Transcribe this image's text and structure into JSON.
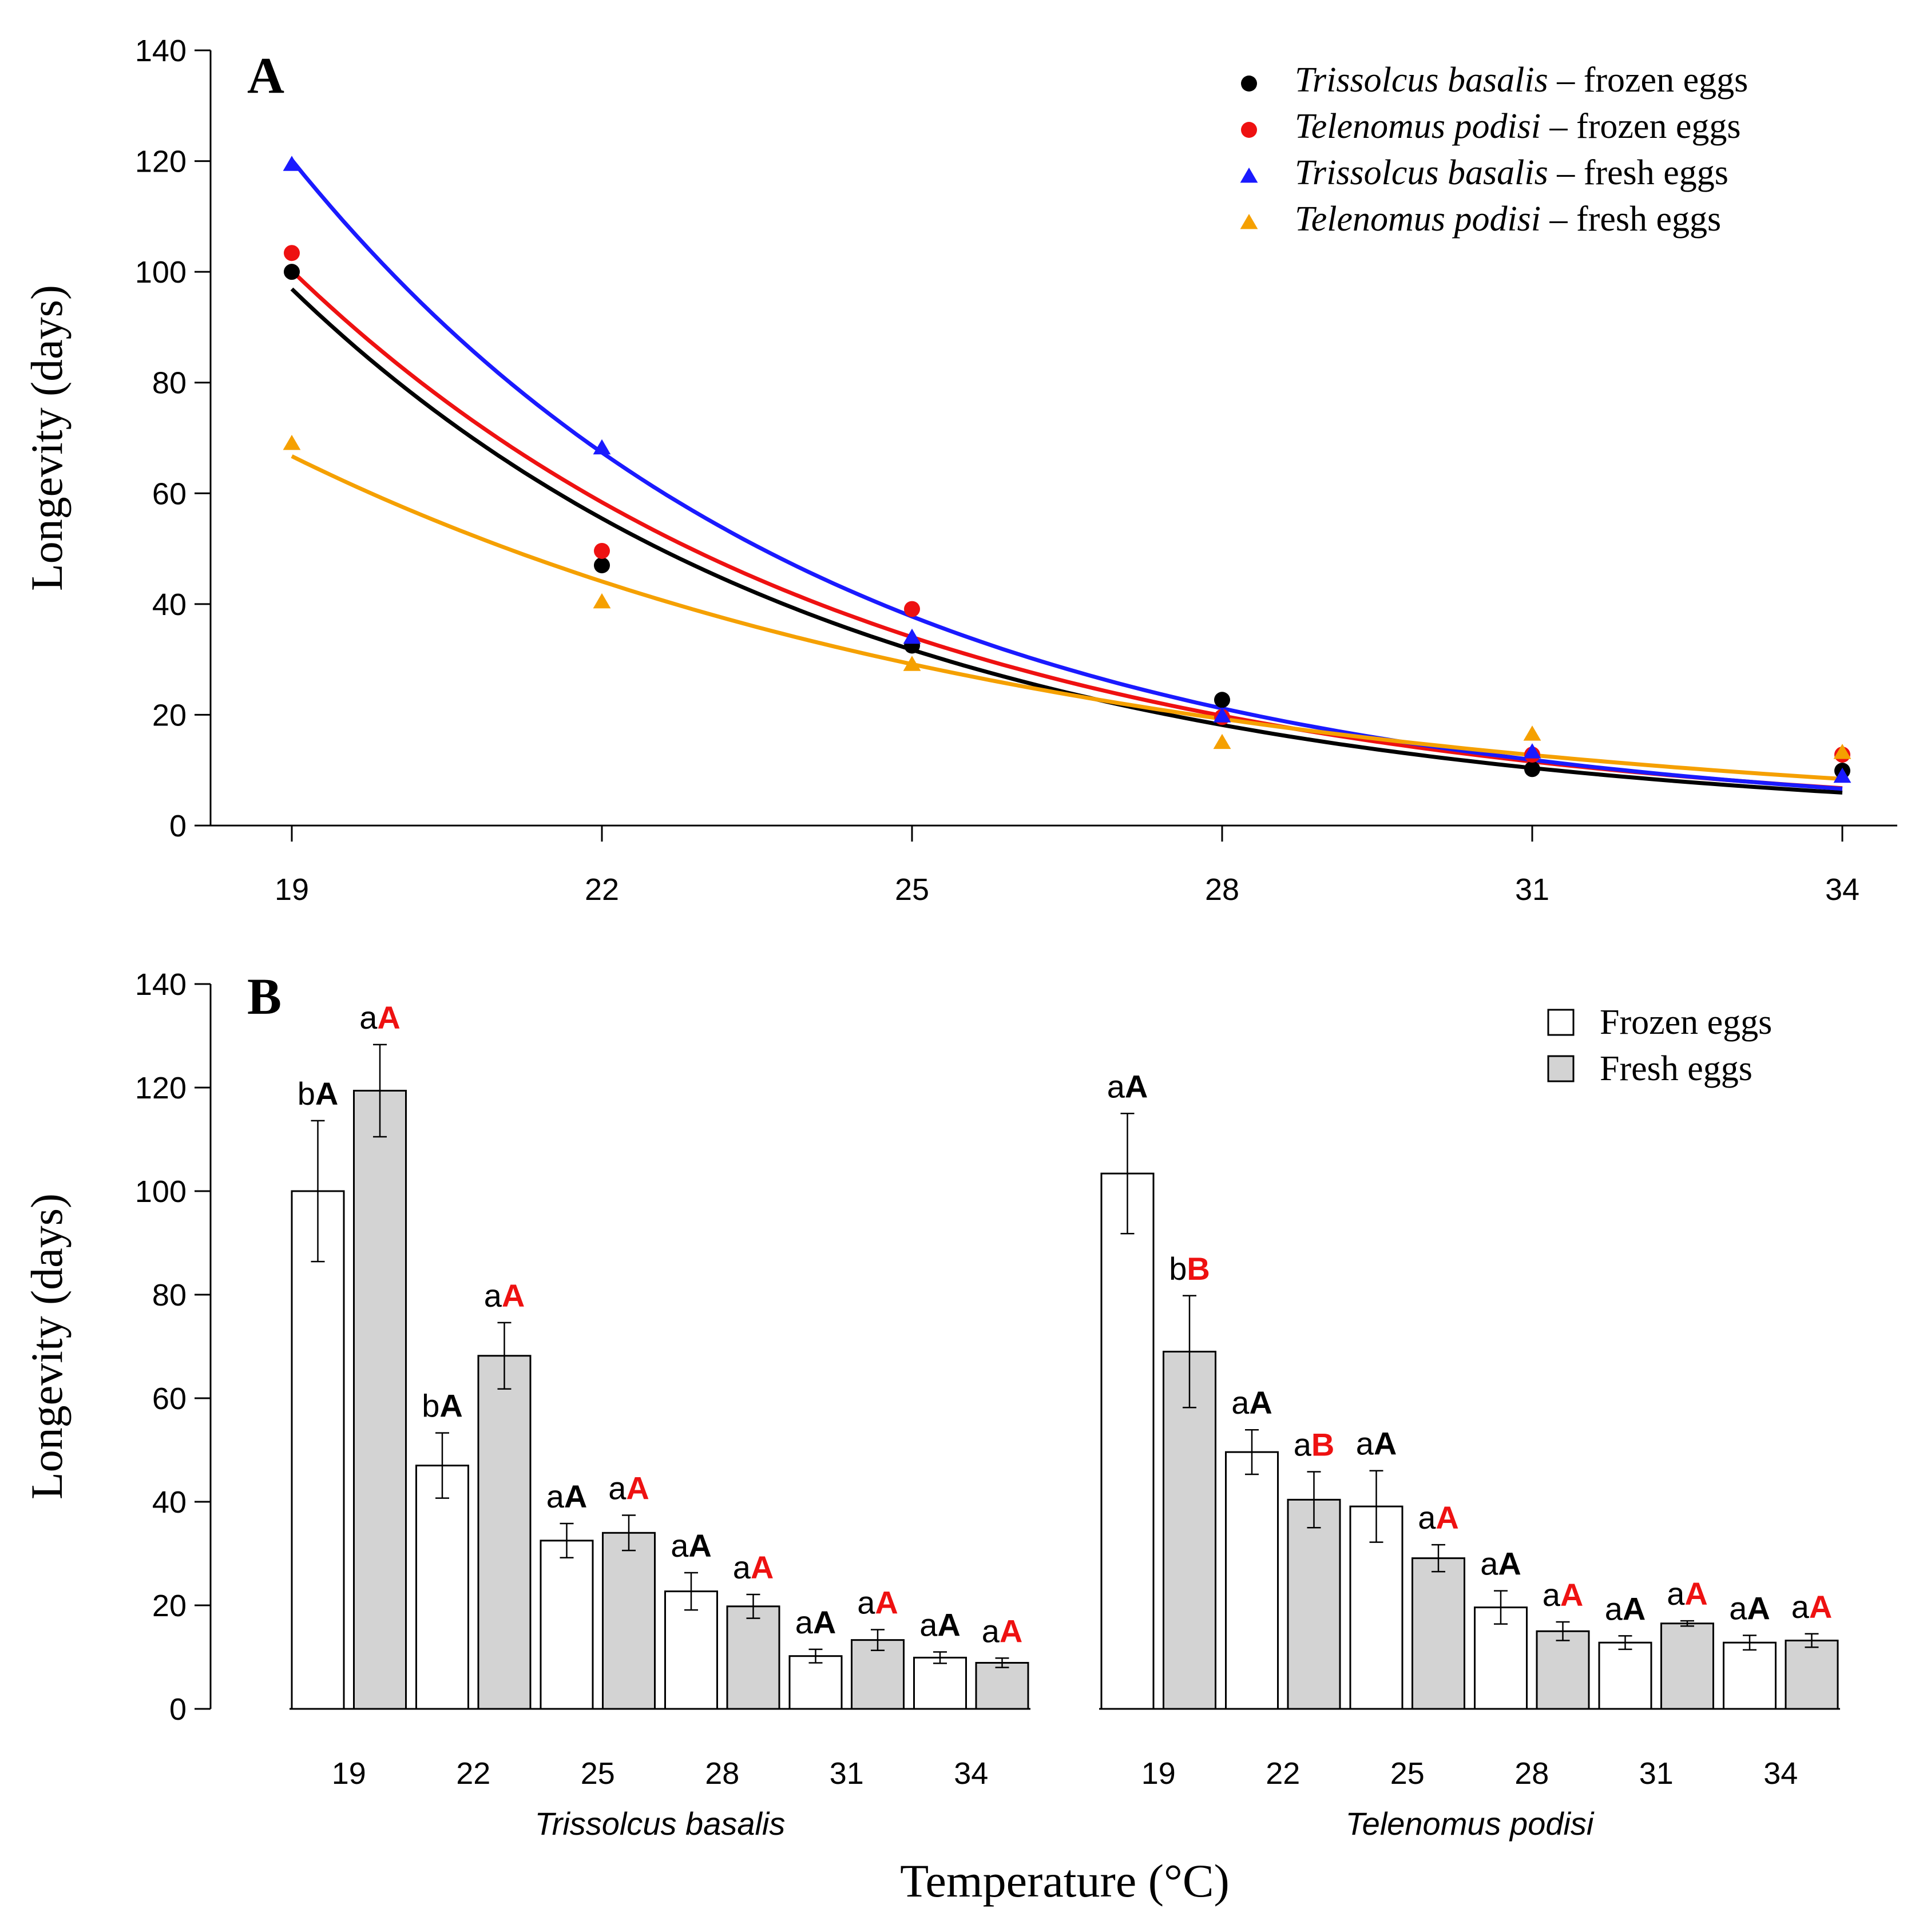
{
  "figure_xlabel": "Temperature (°C)",
  "chart_data": [
    {
      "type": "scatter",
      "panel_label": "A",
      "ylabel": "Longevity (days)",
      "xlabel": "",
      "x": [
        19,
        22,
        25,
        28,
        31,
        34
      ],
      "x_tick_labels": [
        "19",
        "22",
        "25",
        "28",
        "31",
        "34"
      ],
      "ylim": [
        0,
        140
      ],
      "y_ticks": [
        0,
        20,
        40,
        60,
        80,
        100,
        120,
        140
      ],
      "legend_position": "top-right",
      "series": [
        {
          "name_italic": "Trissolcus basalis",
          "name_rest": " – frozen eggs",
          "marker": "circle",
          "color": "#000000",
          "values": [
            100,
            47,
            32.5,
            22.7,
            10.2,
            9.9
          ],
          "fit": {
            "model": "exponential",
            "a": 96.9,
            "k": 0.186
          }
        },
        {
          "name_italic": "Telenomus podisi",
          "name_rest": " – frozen eggs",
          "marker": "circle",
          "color": "#ee1111",
          "values": [
            103.4,
            49.6,
            39.1,
            19.6,
            12.8,
            12.8
          ],
          "fit": {
            "model": "exponential",
            "a": 100.2,
            "k": 0.18
          }
        },
        {
          "name_italic": "Trissolcus basalis",
          "name_rest": " – fresh eggs",
          "marker": "triangle",
          "color": "#1a1aff",
          "values": [
            119.4,
            68.2,
            34,
            19.8,
            13.3,
            8.9
          ],
          "fit": {
            "model": "exponential",
            "a": 120.2,
            "k": 0.193
          }
        },
        {
          "name_italic": "Telenomus podisi",
          "name_rest": " – fresh eggs",
          "marker": "triangle",
          "color": "#f5a000",
          "values": [
            69,
            40.4,
            29.1,
            15,
            16.5,
            13.2
          ],
          "fit": {
            "model": "exponential",
            "a": 66.7,
            "k": 0.138
          }
        }
      ]
    },
    {
      "type": "bar",
      "panel_label": "B",
      "ylabel": "Longevity (days)",
      "ylim": [
        0,
        140
      ],
      "y_ticks": [
        0,
        20,
        40,
        60,
        80,
        100,
        120,
        140
      ],
      "legend_position": "top-right",
      "legend": [
        {
          "name": "Frozen eggs",
          "fill": "#ffffff"
        },
        {
          "name": "Fresh eggs",
          "fill": "#d3d3d3"
        }
      ],
      "letter_colors": {
        "frozen": "#000000",
        "fresh": "#ee1111"
      },
      "groups": [
        {
          "name": "Trissolcus basalis",
          "categories": [
            "19",
            "22",
            "25",
            "28",
            "31",
            "34"
          ],
          "series": [
            {
              "name": "Frozen eggs",
              "values": [
                100,
                47,
                32.5,
                22.7,
                10.2,
                9.9
              ],
              "err": [
                13.6,
                6.3,
                3.3,
                3.6,
                1.3,
                1.1
              ],
              "labels": [
                [
                  "b",
                  "A"
                ],
                [
                  "b",
                  "A"
                ],
                [
                  "a",
                  "A"
                ],
                [
                  "a",
                  "A"
                ],
                [
                  "a",
                  "A"
                ],
                [
                  "a",
                  "A"
                ]
              ]
            },
            {
              "name": "Fresh eggs",
              "values": [
                119.4,
                68.2,
                34,
                19.8,
                13.3,
                8.9
              ],
              "err": [
                8.9,
                6.4,
                3.4,
                2.3,
                2.0,
                0.9
              ],
              "labels": [
                [
                  "a",
                  "A"
                ],
                [
                  "a",
                  "A"
                ],
                [
                  "a",
                  "A"
                ],
                [
                  "a",
                  "A"
                ],
                [
                  "a",
                  "A"
                ],
                [
                  "a",
                  "A"
                ]
              ]
            }
          ]
        },
        {
          "name": "Telenomus podisi",
          "categories": [
            "19",
            "22",
            "25",
            "28",
            "31",
            "34"
          ],
          "series": [
            {
              "name": "Frozen eggs",
              "values": [
                103.4,
                49.6,
                39.1,
                19.6,
                12.8,
                12.8
              ],
              "err": [
                11.6,
                4.3,
                6.9,
                3.2,
                1.3,
                1.4
              ],
              "labels": [
                [
                  "a",
                  "A"
                ],
                [
                  "a",
                  "A"
                ],
                [
                  "a",
                  "A"
                ],
                [
                  "a",
                  "A"
                ],
                [
                  "a",
                  "A"
                ],
                [
                  "a",
                  "A"
                ]
              ]
            },
            {
              "name": "Fresh eggs",
              "values": [
                69,
                40.4,
                29.1,
                15,
                16.5,
                13.2
              ],
              "err": [
                10.8,
                5.4,
                2.6,
                1.8,
                0.5,
                1.3
              ],
              "labels": [
                [
                  "b",
                  "B"
                ],
                [
                  "a",
                  "B"
                ],
                [
                  "a",
                  "A"
                ],
                [
                  "a",
                  "A"
                ],
                [
                  "a",
                  "A"
                ],
                [
                  "a",
                  "A"
                ]
              ]
            }
          ]
        }
      ]
    }
  ]
}
